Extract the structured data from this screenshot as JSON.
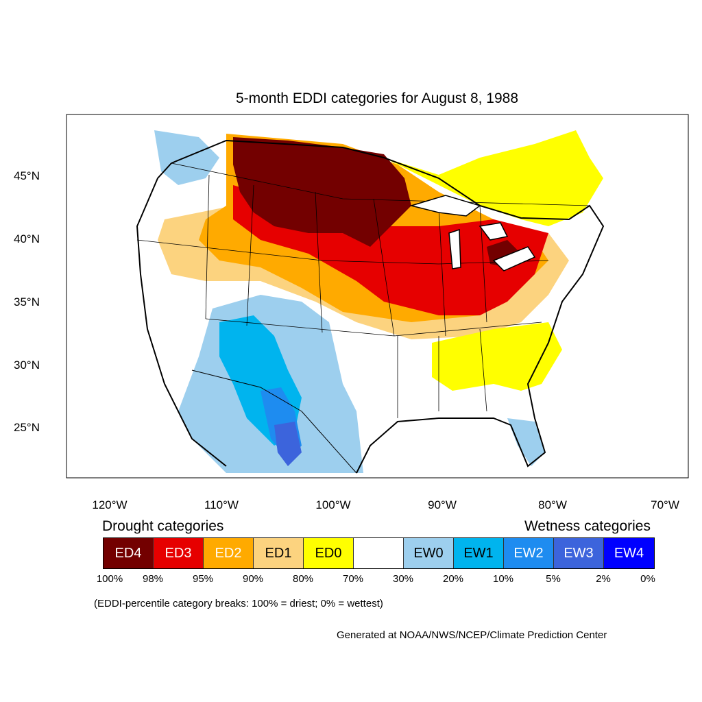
{
  "title": "5-month EDDI categories for August 8, 1988",
  "lat_labels": [
    "45°N",
    "40°N",
    "35°N",
    "30°N",
    "25°N"
  ],
  "lon_labels": [
    "120°W",
    "110°W",
    "100°W",
    "90°W",
    "80°W",
    "70°W"
  ],
  "legend": {
    "drought_heading": "Drought categories",
    "wetness_heading": "Wetness categories",
    "categories": [
      {
        "label": "ED4",
        "color": "#730000",
        "text_color": "#ffffff"
      },
      {
        "label": "ED3",
        "color": "#e60000",
        "text_color": "#ffffff"
      },
      {
        "label": "ED2",
        "color": "#ffaa00",
        "text_color": "#ffffff"
      },
      {
        "label": "ED1",
        "color": "#fcd37f",
        "text_color": "#000000"
      },
      {
        "label": "ED0",
        "color": "#ffff00",
        "text_color": "#000000"
      },
      {
        "label": "",
        "color": "#ffffff",
        "text_color": "#000000"
      },
      {
        "label": "EW0",
        "color": "#9dcfee",
        "text_color": "#000000"
      },
      {
        "label": "EW1",
        "color": "#00b4ee",
        "text_color": "#000000"
      },
      {
        "label": "EW2",
        "color": "#1e8cf0",
        "text_color": "#ffffff"
      },
      {
        "label": "EW3",
        "color": "#3c64dc",
        "text_color": "#ffffff"
      },
      {
        "label": "EW4",
        "color": "#0000ff",
        "text_color": "#ffffff"
      }
    ],
    "breaks": [
      "100%",
      "98%",
      "95%",
      "90%",
      "80%",
      "70%",
      "30%",
      "20%",
      "10%",
      "5%",
      "2%",
      "0%"
    ]
  },
  "note": "(EDDI-percentile category breaks: 100% = driest; 0% = wettest)",
  "credit": "Generated at NOAA/NWS/NCEP/Climate Prediction Center"
}
